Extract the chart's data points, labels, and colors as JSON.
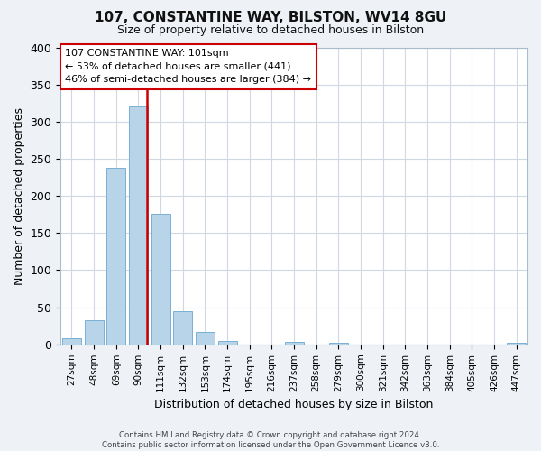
{
  "title": "107, CONSTANTINE WAY, BILSTON, WV14 8GU",
  "subtitle": "Size of property relative to detached houses in Bilston",
  "xlabel": "Distribution of detached houses by size in Bilston",
  "ylabel": "Number of detached properties",
  "bin_labels": [
    "27sqm",
    "48sqm",
    "69sqm",
    "90sqm",
    "111sqm",
    "132sqm",
    "153sqm",
    "174sqm",
    "195sqm",
    "216sqm",
    "237sqm",
    "258sqm",
    "279sqm",
    "300sqm",
    "321sqm",
    "342sqm",
    "363sqm",
    "384sqm",
    "405sqm",
    "426sqm",
    "447sqm"
  ],
  "bar_values": [
    8,
    32,
    238,
    320,
    176,
    45,
    17,
    5,
    0,
    0,
    3,
    0,
    2,
    0,
    0,
    0,
    0,
    0,
    0,
    0,
    2
  ],
  "bar_color": "#b8d4e8",
  "bar_edge_color": "#7aafd4",
  "vline_color": "#cc0000",
  "vline_xindex": 3.4,
  "annotation_lines": [
    "107 CONSTANTINE WAY: 101sqm",
    "← 53% of detached houses are smaller (441)",
    "46% of semi-detached houses are larger (384) →"
  ],
  "ylim": [
    0,
    400
  ],
  "yticks": [
    0,
    50,
    100,
    150,
    200,
    250,
    300,
    350,
    400
  ],
  "footer_lines": [
    "Contains HM Land Registry data © Crown copyright and database right 2024.",
    "Contains public sector information licensed under the Open Government Licence v3.0."
  ],
  "bg_color": "#eef2f7",
  "plot_bg_color": "#ffffff",
  "grid_color": "#d0d8e4"
}
